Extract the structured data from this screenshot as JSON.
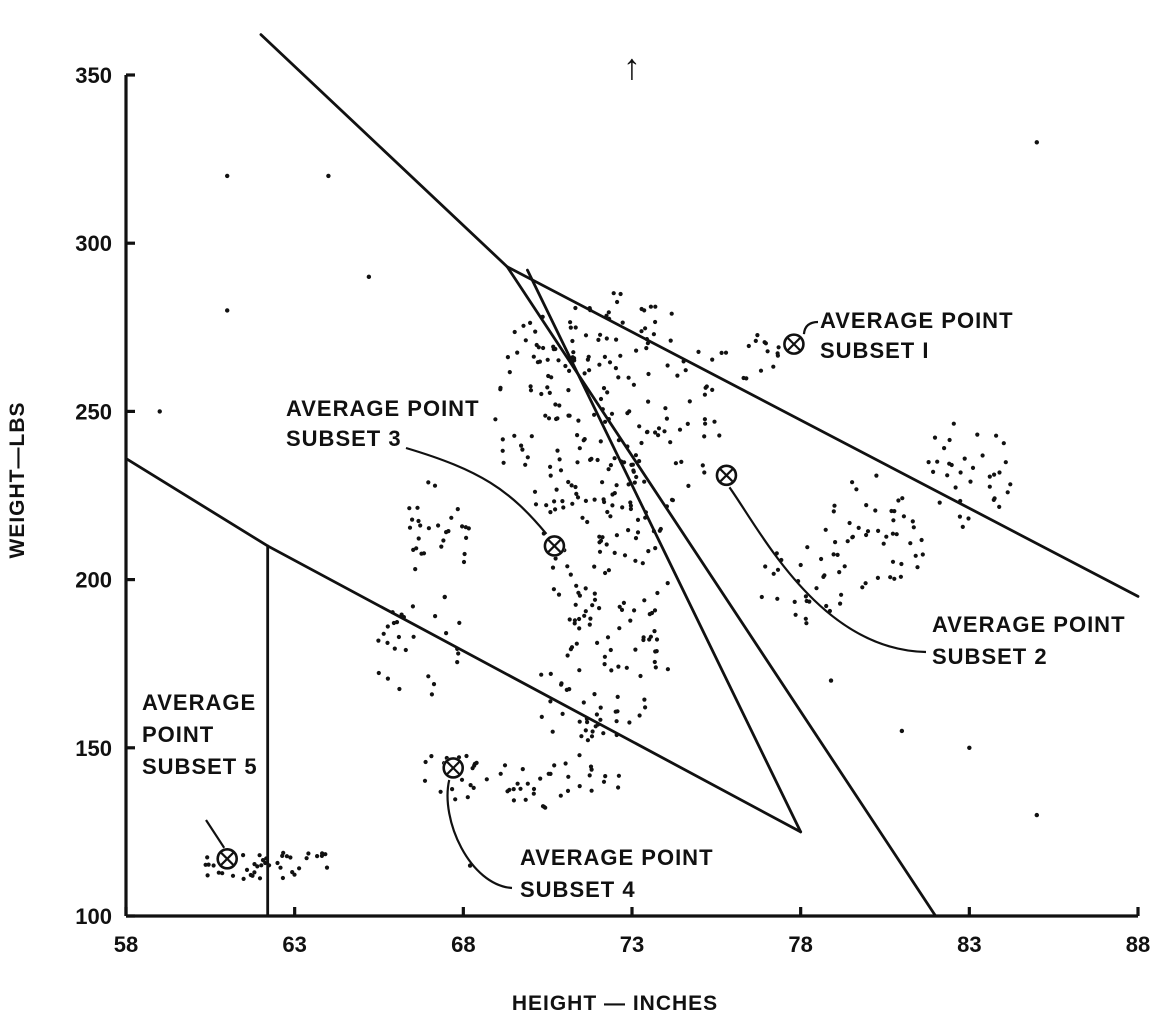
{
  "chart_data": {
    "type": "scatter",
    "title": "",
    "xlabel": "HEIGHT — INCHES",
    "ylabel": "WEIGHT—LBS",
    "xlim": [
      58,
      88
    ],
    "ylim": [
      100,
      350
    ],
    "x_ticks": [
      "58",
      "63",
      "68",
      "73",
      "78",
      "83",
      "88"
    ],
    "y_ticks": [
      "100",
      "150",
      "200",
      "250",
      "300",
      "350"
    ],
    "grid": false,
    "legend": "none",
    "arrow_marker": {
      "x": 73,
      "y": 350,
      "glyph": "↑"
    },
    "boundary_lines": [
      {
        "name": "",
        "points": [
          [
            62.0,
            362
          ],
          [
            69.3,
            293
          ],
          [
            82.0,
            100
          ]
        ]
      },
      {
        "name": "",
        "points": [
          [
            69.3,
            293
          ],
          [
            88.0,
            195
          ]
        ]
      },
      {
        "name": "",
        "points": [
          [
            69.9,
            292
          ],
          [
            78.0,
            125
          ]
        ]
      },
      {
        "name": "",
        "points": [
          [
            58.0,
            236
          ],
          [
            62.2,
            210
          ],
          [
            78.0,
            125
          ]
        ]
      },
      {
        "name": "",
        "points": [
          [
            62.2,
            210
          ],
          [
            62.2,
            100
          ]
        ]
      }
    ],
    "average_points": [
      {
        "id": "subset1",
        "x": 77.8,
        "y": 270,
        "label": [
          "AVERAGE POINT",
          "SUBSET I"
        ]
      },
      {
        "id": "subset2",
        "x": 75.8,
        "y": 231,
        "label": [
          "AVERAGE POINT",
          "SUBSET 2"
        ]
      },
      {
        "id": "subset3",
        "x": 70.7,
        "y": 210,
        "label": [
          "AVERAGE POINT",
          "SUBSET 3"
        ]
      },
      {
        "id": "subset4",
        "x": 67.7,
        "y": 144,
        "label": [
          "AVERAGE POINT",
          "SUBSET 4"
        ]
      },
      {
        "id": "subset5",
        "x": 61.0,
        "y": 117,
        "label": [
          "AVERAGE",
          "POINT",
          "SUBSET 5"
        ]
      }
    ],
    "clusters": [
      {
        "name": "subset3-upper",
        "cx": 70.8,
        "cy": 250,
        "rx": 1.9,
        "ry": 32,
        "count": 70
      },
      {
        "name": "central-upper",
        "cx": 73.0,
        "cy": 252,
        "rx": 2.7,
        "ry": 34,
        "count": 120
      },
      {
        "name": "central-mid",
        "cx": 72.4,
        "cy": 210,
        "rx": 2.1,
        "ry": 28,
        "count": 80
      },
      {
        "name": "central-lower",
        "cx": 72.2,
        "cy": 172,
        "rx": 1.9,
        "ry": 20,
        "count": 55
      },
      {
        "name": "subset1-tail",
        "cx": 76.8,
        "cy": 265,
        "rx": 1.2,
        "ry": 10,
        "count": 16
      },
      {
        "name": "subset2-right",
        "cx": 83.0,
        "cy": 232,
        "rx": 1.3,
        "ry": 18,
        "count": 34
      },
      {
        "name": "subset2-mid",
        "cx": 80.3,
        "cy": 214,
        "rx": 1.7,
        "ry": 18,
        "count": 45
      },
      {
        "name": "subset2-lower",
        "cx": 78.0,
        "cy": 198,
        "rx": 1.4,
        "ry": 12,
        "count": 26
      },
      {
        "name": "left-cluster",
        "cx": 67.2,
        "cy": 212,
        "rx": 1.0,
        "ry": 18,
        "count": 30
      },
      {
        "name": "left-cluster-low",
        "cx": 66.7,
        "cy": 180,
        "rx": 1.5,
        "ry": 15,
        "count": 26
      },
      {
        "name": "subset4-a",
        "cx": 67.7,
        "cy": 142,
        "rx": 1.1,
        "ry": 8,
        "count": 20
      },
      {
        "name": "subset4-b",
        "cx": 70.8,
        "cy": 140,
        "rx": 1.9,
        "ry": 9,
        "count": 34
      },
      {
        "name": "subset4-c",
        "cx": 71.2,
        "cy": 157,
        "rx": 1.0,
        "ry": 6,
        "count": 12
      },
      {
        "name": "subset5-row1",
        "cx": 62.1,
        "cy": 118,
        "rx": 2.2,
        "ry": 1.4,
        "count": 16
      },
      {
        "name": "subset5-row2",
        "cx": 62.1,
        "cy": 115,
        "rx": 2.2,
        "ry": 1.4,
        "count": 14
      },
      {
        "name": "subset5-row3",
        "cx": 62.1,
        "cy": 112,
        "rx": 2.0,
        "ry": 1.2,
        "count": 12
      }
    ],
    "outliers": [
      [
        59.0,
        250
      ],
      [
        61.0,
        320
      ],
      [
        61.0,
        280
      ],
      [
        64.0,
        320
      ],
      [
        65.2,
        290
      ],
      [
        78.9,
        170
      ],
      [
        81.0,
        155
      ],
      [
        83.0,
        150
      ],
      [
        85.0,
        330
      ],
      [
        85.0,
        130
      ],
      [
        68.2,
        115
      ],
      [
        78.0,
        270
      ]
    ]
  }
}
